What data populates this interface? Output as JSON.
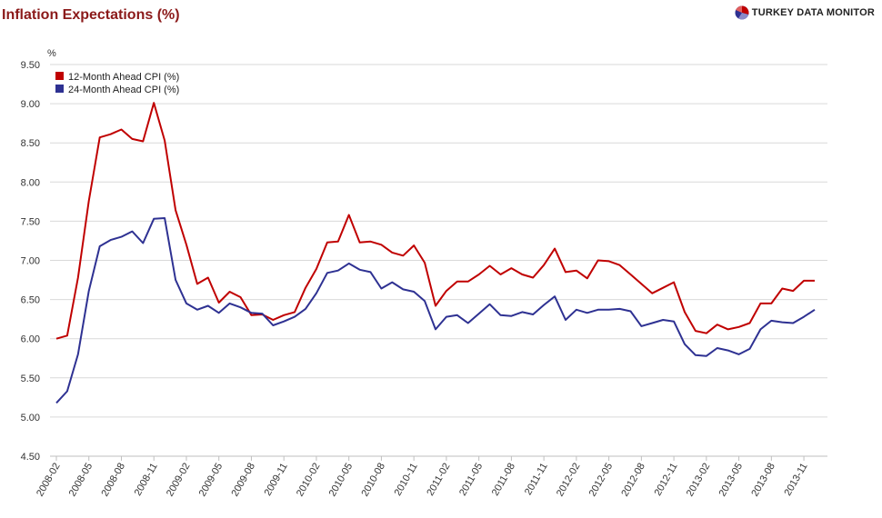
{
  "header": {
    "title": "Inflation Expectations (%)",
    "brand": "TURKEY DATA MONITOR"
  },
  "chart_data": {
    "type": "line",
    "ylabel": "%",
    "ylim": [
      4.5,
      9.5
    ],
    "yticks": [
      "4.50",
      "5.00",
      "5.50",
      "6.00",
      "6.50",
      "7.00",
      "7.50",
      "8.00",
      "8.50",
      "9.00",
      "9.50"
    ],
    "grid": true,
    "legend_position": "top-left",
    "x_tick_labels": [
      "2008-02",
      "2008-05",
      "2008-08",
      "2008-11",
      "2009-02",
      "2009-05",
      "2009-08",
      "2009-11",
      "2010-02",
      "2010-05",
      "2010-08",
      "2010-11",
      "2011-02",
      "2011-05",
      "2011-08",
      "2011-11",
      "2012-02",
      "2012-05",
      "2012-08",
      "2012-11",
      "2013-02",
      "2013-05",
      "2013-08",
      "2013-11"
    ],
    "x": [
      "2008-02",
      "2008-03",
      "2008-04",
      "2008-05",
      "2008-06",
      "2008-07",
      "2008-08",
      "2008-09",
      "2008-10",
      "2008-11",
      "2008-12",
      "2009-01",
      "2009-02",
      "2009-03",
      "2009-04",
      "2009-05",
      "2009-06",
      "2009-07",
      "2009-08",
      "2009-09",
      "2009-10",
      "2009-11",
      "2009-12",
      "2010-01",
      "2010-02",
      "2010-03",
      "2010-04",
      "2010-05",
      "2010-06",
      "2010-07",
      "2010-08",
      "2010-09",
      "2010-10",
      "2010-11",
      "2010-12",
      "2011-01",
      "2011-02",
      "2011-03",
      "2011-04",
      "2011-05",
      "2011-06",
      "2011-07",
      "2011-08",
      "2011-09",
      "2011-10",
      "2011-11",
      "2011-12",
      "2012-01",
      "2012-02",
      "2012-03",
      "2012-04",
      "2012-05",
      "2012-06",
      "2012-07",
      "2012-08",
      "2012-09",
      "2012-10",
      "2012-11",
      "2012-12",
      "2013-01",
      "2013-02",
      "2013-03",
      "2013-04",
      "2013-05",
      "2013-06",
      "2013-07",
      "2013-08",
      "2013-09",
      "2013-10",
      "2013-11",
      "2013-12"
    ],
    "series": [
      {
        "name": "12-Month Ahead CPI (%)",
        "color": "#c00000",
        "values": [
          6.0,
          6.04,
          6.78,
          7.76,
          8.57,
          8.61,
          8.67,
          8.55,
          8.52,
          9.01,
          8.53,
          7.64,
          7.2,
          6.7,
          6.78,
          6.46,
          6.6,
          6.53,
          6.3,
          6.31,
          6.24,
          6.3,
          6.34,
          6.65,
          6.89,
          7.23,
          7.24,
          7.58,
          7.23,
          7.24,
          7.2,
          7.1,
          7.06,
          7.19,
          6.97,
          6.42,
          6.61,
          6.73,
          6.73,
          6.82,
          6.93,
          6.82,
          6.9,
          6.82,
          6.78,
          6.94,
          7.15,
          6.85,
          6.87,
          6.77,
          7.0,
          6.99,
          6.94,
          6.82,
          6.7,
          6.58,
          6.65,
          6.72,
          6.34,
          6.1,
          6.07,
          6.18,
          6.12,
          6.15,
          6.2,
          6.45,
          6.45,
          6.64,
          6.61,
          6.74,
          6.74
        ]
      },
      {
        "name": "24-Month Ahead CPI (%)",
        "color": "#2e3192",
        "values": [
          5.18,
          5.33,
          5.8,
          6.61,
          7.18,
          7.26,
          7.3,
          7.37,
          7.22,
          7.53,
          7.54,
          6.75,
          6.45,
          6.37,
          6.42,
          6.33,
          6.45,
          6.4,
          6.33,
          6.32,
          6.17,
          6.22,
          6.28,
          6.38,
          6.58,
          6.84,
          6.87,
          6.96,
          6.88,
          6.85,
          6.64,
          6.72,
          6.63,
          6.6,
          6.48,
          6.12,
          6.28,
          6.3,
          6.2,
          6.32,
          6.44,
          6.3,
          6.29,
          6.34,
          6.31,
          6.43,
          6.54,
          6.24,
          6.37,
          6.33,
          6.37,
          6.37,
          6.38,
          6.35,
          6.16,
          6.2,
          6.24,
          6.22,
          5.93,
          5.79,
          5.78,
          5.88,
          5.85,
          5.8,
          5.87,
          6.12,
          6.23,
          6.21,
          6.2,
          6.28,
          6.37
        ]
      }
    ]
  }
}
